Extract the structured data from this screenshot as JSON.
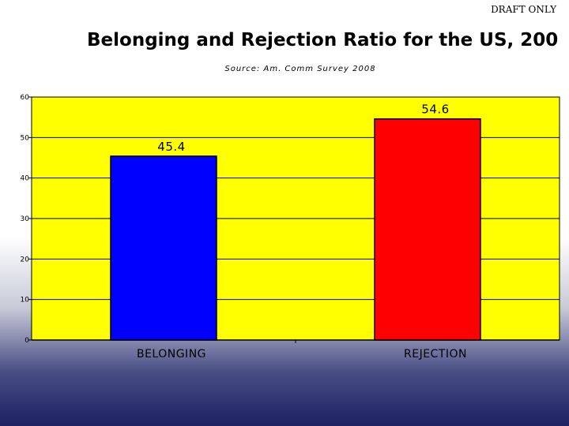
{
  "header": {
    "draft_label": "DRAFT ONLY"
  },
  "chart_data": {
    "type": "bar",
    "title": "Belonging and Rejection Ratio for the US, 200",
    "subtitle": "Source: Am. Comm Survey 2008",
    "categories": [
      "BELONGING",
      "REJECTION"
    ],
    "values": [
      45.4,
      54.6
    ],
    "data_labels": [
      "45.4",
      "54.6"
    ],
    "bar_colors": [
      "#0000ff",
      "#ff0000"
    ],
    "plot_background": "#ffff00",
    "ylim": [
      0,
      60
    ],
    "yticks": [
      0,
      10,
      20,
      30,
      40,
      50,
      60
    ],
    "grid": true,
    "xlabel": "",
    "ylabel": ""
  }
}
